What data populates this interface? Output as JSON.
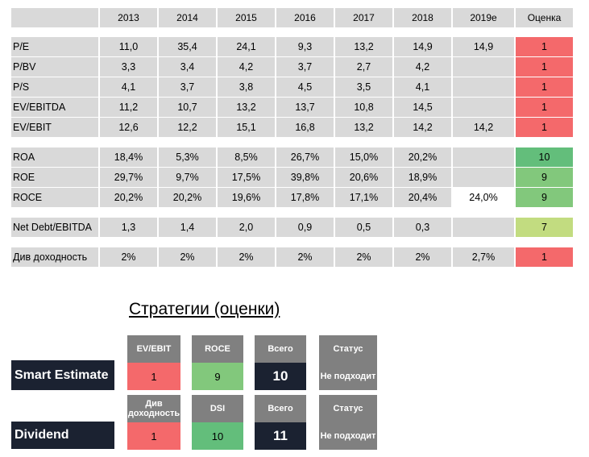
{
  "table": {
    "header": [
      "",
      "2013",
      "2014",
      "2015",
      "2016",
      "2017",
      "2018",
      "2019e",
      "Оценка"
    ],
    "groups": [
      {
        "rows": [
          {
            "label": "P/E",
            "values": [
              "11,0",
              "35,4",
              "24,1",
              "9,3",
              "13,2",
              "14,9"
            ],
            "forecast": "14,9",
            "score": "1"
          },
          {
            "label": "P/BV",
            "values": [
              "3,3",
              "3,4",
              "4,2",
              "3,7",
              "2,7",
              "4,2"
            ],
            "forecast": "",
            "score": "1"
          },
          {
            "label": "P/S",
            "values": [
              "4,1",
              "3,7",
              "3,8",
              "4,5",
              "3,5",
              "4,1"
            ],
            "forecast": "",
            "score": "1"
          },
          {
            "label": "EV/EBITDA",
            "values": [
              "11,2",
              "10,7",
              "13,2",
              "13,7",
              "10,8",
              "14,5"
            ],
            "forecast": "",
            "score": "1"
          },
          {
            "label": "EV/EBIT",
            "values": [
              "12,6",
              "12,2",
              "15,1",
              "16,8",
              "13,2",
              "14,2"
            ],
            "forecast": "14,2",
            "score": "1"
          }
        ]
      },
      {
        "rows": [
          {
            "label": "ROA",
            "values": [
              "18,4%",
              "5,3%",
              "8,5%",
              "26,7%",
              "15,0%",
              "20,2%"
            ],
            "forecast": "",
            "score": "10"
          },
          {
            "label": "ROE",
            "values": [
              "29,7%",
              "9,7%",
              "17,5%",
              "39,8%",
              "20,6%",
              "18,9%"
            ],
            "forecast": "",
            "score": "9"
          },
          {
            "label": "ROCE",
            "values": [
              "20,2%",
              "20,2%",
              "19,6%",
              "17,8%",
              "17,1%",
              "20,4%"
            ],
            "forecast": "24,0%",
            "score": "9"
          }
        ]
      },
      {
        "rows": [
          {
            "label": "Net Debt/EBITDA",
            "values": [
              "1,3",
              "1,4",
              "2,0",
              "0,9",
              "0,5",
              "0,3"
            ],
            "forecast": "",
            "score": "7"
          }
        ]
      },
      {
        "rows": [
          {
            "label": "Див доходность",
            "values": [
              "2%",
              "2%",
              "2%",
              "2%",
              "2%",
              "2%"
            ],
            "forecast": "2,7%",
            "score": "1"
          }
        ]
      }
    ],
    "score_colors": {
      "red": "#f4696b",
      "green_dark": "#63be7b",
      "green": "#82c87c",
      "green_light": "#c2dc80"
    }
  },
  "strategies": {
    "title": "Стратегии (оценки)",
    "items": [
      {
        "name": "Smart Estimate",
        "metric1_label": "EV/EBIT",
        "metric1_value": "1",
        "metric2_label": "ROCE",
        "metric2_value": "9",
        "total_label": "Всего",
        "total_value": "10",
        "status_label": "Статус",
        "status_value": "Не подходит"
      },
      {
        "name": "Dividend",
        "metric1_label": "Див доходность",
        "metric1_value": "1",
        "metric2_label": "DSI",
        "metric2_value": "10",
        "total_label": "Всего",
        "total_value": "11",
        "status_label": "Статус",
        "status_value": "Не подходит"
      }
    ]
  }
}
